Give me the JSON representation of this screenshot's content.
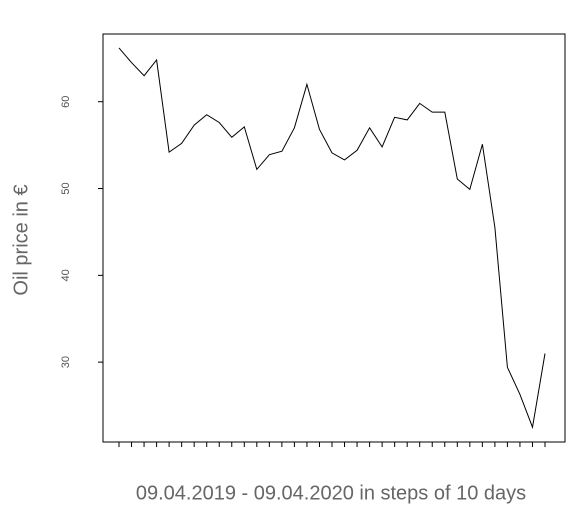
{
  "chart_data": {
    "type": "line",
    "x_label": "09.04.2019 - 09.04.2020 in steps of 10 days",
    "y_label": "Oil price in €",
    "categories": [
      null,
      null,
      null,
      null,
      null,
      null,
      null,
      null,
      null,
      null,
      null,
      null,
      null,
      null,
      null,
      null,
      null,
      null,
      null,
      null,
      null,
      null,
      null,
      null,
      null,
      null,
      null,
      null,
      null,
      null,
      null,
      null,
      null,
      null,
      null
    ],
    "values": [
      66.2,
      64.5,
      63,
      64.8,
      54.2,
      55.2,
      57.3,
      58.5,
      57.6,
      55.9,
      57.1,
      52.2,
      53.9,
      54.3,
      57,
      62,
      56.8,
      54.1,
      53.3,
      54.4,
      57,
      54.8,
      58.2,
      57.9,
      59.8,
      58.8,
      58.8,
      51.1,
      49.9,
      55.1,
      45.5,
      29.4,
      26.3,
      22.5,
      31
    ],
    "color": "#000000",
    "ylim": [
      20.8,
      67.8
    ],
    "yticks": [
      30,
      40,
      50,
      60
    ],
    "grid": false
  }
}
